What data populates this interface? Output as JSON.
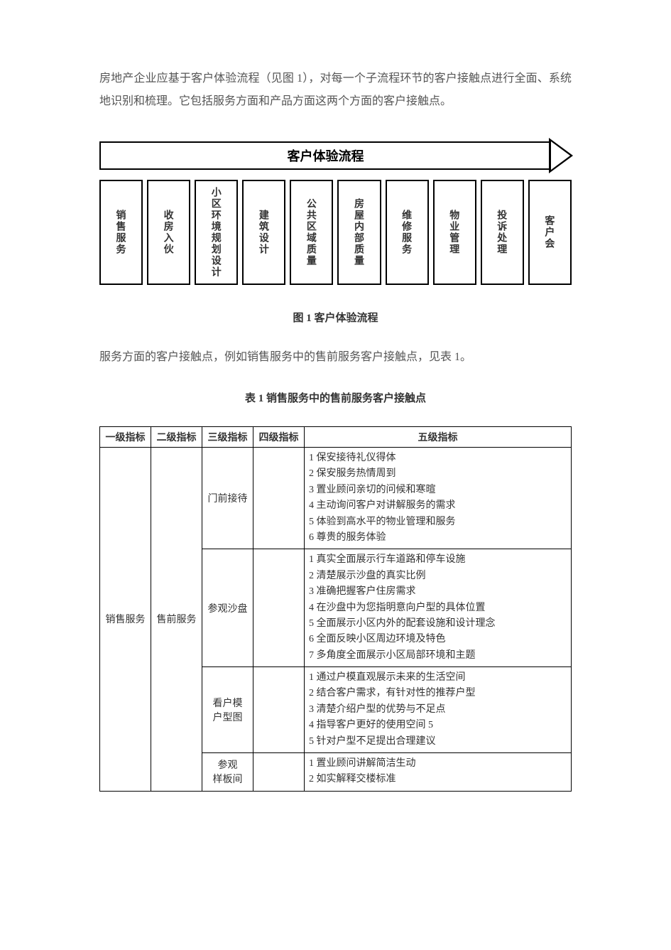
{
  "intro": "房地产企业应基于客户体验流程（见图 1），对每一个子流程环节的客户接触点进行全面、系统地识别和梳理。它包括服务方面和产品方面这两个方面的客户接触点。",
  "diagram": {
    "header": "客户体验流程",
    "boxes": [
      "销售服务",
      "收房入伙",
      "小区环境规划设计",
      "建筑设计",
      "公共区域质量",
      "房屋内部质量",
      "维修服务",
      "物业管理",
      "投诉处理",
      "客户会"
    ]
  },
  "figure_caption": "图 1  客户体验流程",
  "mid_text": "服务方面的客户接触点，例如销售服务中的售前服务客户接触点，见表 1。",
  "table_caption": "表 1 销售服务中的售前服务客户接触点",
  "table": {
    "headers": [
      "一级指标",
      "二级指标",
      "三级指标",
      "四级指标",
      "五级指标"
    ],
    "level1": "销售服务",
    "level2": "售前服务",
    "groups": [
      {
        "level3": "门前接待",
        "level4": "",
        "items": [
          "1 保安接待礼仪得体",
          "2 保安服务热情周到",
          "3 置业顾问亲切的问候和寒暄",
          "4 主动询问客户对讲解服务的需求",
          "5 体验到高水平的物业管理和服务",
          "6 尊贵的服务体验"
        ]
      },
      {
        "level3": "参观沙盘",
        "level4": "",
        "items": [
          "1 真实全面展示行车道路和停车设施",
          "2 清楚展示沙盘的真实比例",
          "3 准确把握客户住房需求",
          "4 在沙盘中为您指明意向户型的具体位置",
          "5 全面展示小区内外的配套设施和设计理念",
          "6 全面反映小区周边环境及特色",
          "7 多角度全面展示小区局部环境和主题"
        ]
      },
      {
        "level3": "看户模\n户型图",
        "level4": "",
        "items": [
          "1 通过户模直观展示未来的生活空间",
          "2 结合客户需求，有针对性的推荐户型",
          "3 清楚介绍户型的优势与不足点",
          "4 指导客户更好的使用空间 5",
          "5 针对户型不足提出合理建议"
        ]
      },
      {
        "level3": "参观\n样板间",
        "level4": "",
        "items": [
          "1 置业顾问讲解简洁生动",
          "2 如实解释交楼标准"
        ]
      }
    ]
  },
  "colors": {
    "text": "#333333",
    "secondary_text": "#555555",
    "border": "#000000",
    "background": "#ffffff"
  }
}
